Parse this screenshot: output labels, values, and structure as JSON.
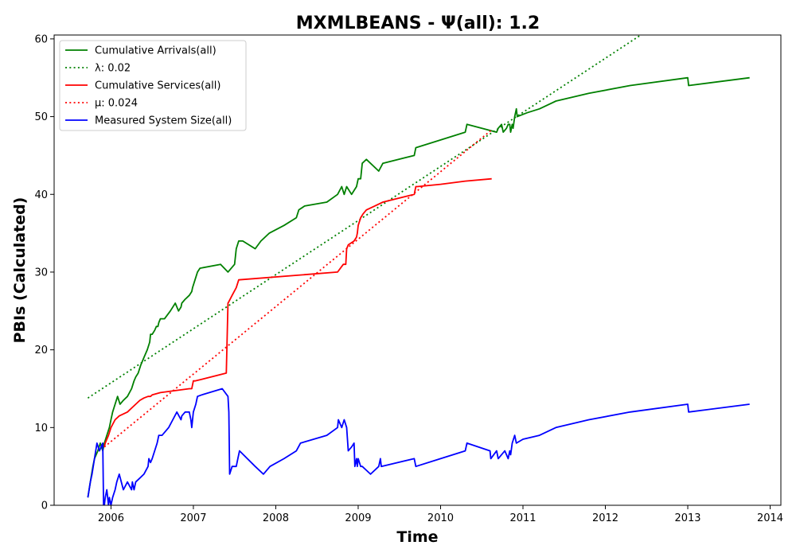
{
  "chart_data": {
    "type": "line",
    "title": "MXMLBEANS -  Ψ(all): 1.2",
    "xlabel": "Time",
    "ylabel": "PBIs (Calculated)",
    "xlim": [
      2005.31,
      2014.13
    ],
    "ylim": [
      0,
      60.5
    ],
    "x_ticks": [
      2006,
      2007,
      2008,
      2009,
      2010,
      2011,
      2012,
      2013,
      2014
    ],
    "y_ticks": [
      0,
      10,
      20,
      30,
      40,
      50,
      60
    ],
    "grid": false,
    "legend_position": "top-left",
    "series": [
      {
        "name": "Cumulative Arrivals(all)",
        "style": "solid",
        "color": "#008000",
        "x": [
          2005.72,
          2005.75,
          2005.78,
          2005.8,
          2005.84,
          2005.87,
          2005.9,
          2005.92,
          2005.95,
          2005.98,
          2006.0,
          2006.02,
          2006.05,
          2006.08,
          2006.11,
          2006.15,
          2006.2,
          2006.25,
          2006.28,
          2006.3,
          2006.33,
          2006.36,
          2006.4,
          2006.44,
          2006.47,
          2006.48,
          2006.5,
          2006.53,
          2006.55,
          2006.57,
          2006.58,
          2006.6,
          2006.65,
          2006.72,
          2006.78,
          2006.82,
          2006.85,
          2006.86,
          2006.9,
          2006.95,
          2006.98,
          2006.99,
          2007.02,
          2007.05,
          2007.08,
          2007.33,
          2007.42,
          2007.5,
          2007.52,
          2007.55,
          2007.6,
          2007.75,
          2007.82,
          2007.92,
          2008.1,
          2008.25,
          2008.28,
          2008.35,
          2008.62,
          2008.75,
          2008.8,
          2008.83,
          2008.86,
          2008.92,
          2008.95,
          2008.98,
          2009.0,
          2009.03,
          2009.05,
          2009.1,
          2009.25,
          2009.3,
          2009.68,
          2009.7,
          2010.0,
          2010.3,
          2010.32,
          2010.68,
          2010.7,
          2010.74,
          2010.76,
          2010.8,
          2010.82,
          2010.84,
          2010.85,
          2010.87,
          2010.88,
          2010.9,
          2010.92,
          2010.93,
          2011.05,
          2011.2,
          2011.4,
          2011.8,
          2012.3,
          2013.0,
          2013.01,
          2013.75
        ],
        "y": [
          1,
          3,
          5,
          6,
          7,
          8,
          7,
          8,
          9,
          10,
          11,
          12,
          13,
          14,
          13,
          13.5,
          14,
          15,
          16,
          16.5,
          17,
          18,
          19,
          20,
          21,
          22,
          22,
          22.5,
          23,
          23,
          23.5,
          24,
          24,
          25,
          26,
          25,
          25.5,
          26,
          26.5,
          27,
          27.5,
          28,
          29,
          30,
          30.5,
          31,
          30,
          31,
          33,
          34,
          34,
          33,
          34,
          35,
          36,
          37,
          38,
          38.5,
          39,
          40,
          41,
          40,
          41,
          40,
          40.5,
          41,
          42,
          42,
          44,
          44.5,
          43,
          44,
          45,
          46,
          47,
          48,
          49,
          48,
          48.5,
          49,
          48,
          48.5,
          49,
          49,
          48,
          49,
          48.5,
          50,
          51,
          50,
          50.5,
          51,
          52,
          53,
          54,
          55,
          54,
          55
        ]
      },
      {
        "name": "λ: 0.02",
        "style": "dotted",
        "color": "#008000",
        "x": [
          2005.72,
          2012.43
        ],
        "y": [
          13.8,
          60.5
        ]
      },
      {
        "name": "Cumulative Services(all)",
        "style": "solid",
        "color": "#ff0000",
        "x": [
          2005.92,
          2005.93,
          2005.95,
          2005.97,
          2006.0,
          2006.05,
          2006.1,
          2006.2,
          2006.25,
          2006.3,
          2006.35,
          2006.4,
          2006.45,
          2006.48,
          2006.5,
          2006.6,
          2006.95,
          2006.98,
          2007.0,
          2007.02,
          2007.1,
          2007.4,
          2007.42,
          2007.43,
          2007.47,
          2007.52,
          2007.55,
          2008.75,
          2008.82,
          2008.85,
          2008.86,
          2008.88,
          2008.95,
          2008.98,
          2008.99,
          2009.0,
          2009.03,
          2009.06,
          2009.1,
          2009.2,
          2009.3,
          2009.68,
          2009.7,
          2009.72,
          2010.0,
          2010.3,
          2010.62
        ],
        "y": [
          7.5,
          8,
          8.5,
          9,
          10,
          11,
          11.5,
          12,
          12.5,
          13,
          13.5,
          13.8,
          14,
          14,
          14.2,
          14.5,
          15,
          15,
          16,
          16,
          16.2,
          17,
          26,
          26.2,
          27,
          28,
          29,
          30,
          31,
          31,
          33,
          33.5,
          34,
          34.5,
          35,
          36,
          37,
          37.5,
          38,
          38.5,
          39,
          40,
          41,
          41,
          41.3,
          41.7,
          42
        ]
      },
      {
        "name": "μ: 0.024",
        "style": "dotted",
        "color": "#ff0000",
        "x": [
          2005.92,
          2010.62
        ],
        "y": [
          7.5,
          48.3
        ]
      },
      {
        "name": "Measured System Size(all)",
        "style": "solid",
        "color": "#0000ff",
        "x": [
          2005.72,
          2005.75,
          2005.77,
          2005.8,
          2005.83,
          2005.86,
          2005.88,
          2005.9,
          2005.91,
          2005.92,
          2005.93,
          2005.95,
          2005.97,
          2005.98,
          2006.0,
          2006.02,
          2006.05,
          2006.07,
          2006.1,
          2006.15,
          2006.2,
          2006.25,
          2006.26,
          2006.28,
          2006.3,
          2006.35,
          2006.4,
          2006.45,
          2006.46,
          2006.48,
          2006.5,
          2006.53,
          2006.56,
          2006.58,
          2006.62,
          2006.7,
          2006.75,
          2006.8,
          2006.85,
          2006.86,
          2006.9,
          2006.95,
          2006.97,
          2006.98,
          2006.99,
          2007.0,
          2007.03,
          2007.05,
          2007.1,
          2007.35,
          2007.42,
          2007.43,
          2007.44,
          2007.47,
          2007.52,
          2007.54,
          2007.56,
          2007.75,
          2007.85,
          2007.93,
          2008.1,
          2008.25,
          2008.3,
          2008.62,
          2008.75,
          2008.76,
          2008.8,
          2008.83,
          2008.86,
          2008.88,
          2008.92,
          2008.95,
          2008.96,
          2008.98,
          2008.99,
          2009.0,
          2009.03,
          2009.05,
          2009.1,
          2009.15,
          2009.25,
          2009.27,
          2009.28,
          2009.68,
          2009.7,
          2010.0,
          2010.3,
          2010.32,
          2010.6,
          2010.61,
          2010.68,
          2010.7,
          2010.78,
          2010.82,
          2010.84,
          2010.85,
          2010.87,
          2010.9,
          2010.92,
          2011.0,
          2011.2,
          2011.4,
          2011.8,
          2012.3,
          2013.0,
          2013.01,
          2013.75
        ],
        "y": [
          1,
          3,
          4,
          6,
          8,
          7,
          7.5,
          8,
          0,
          0,
          1,
          2,
          0,
          1,
          0,
          1,
          2,
          3,
          4,
          2,
          3,
          2,
          3,
          2,
          3,
          3.5,
          4,
          5,
          6,
          5.5,
          6,
          7,
          8,
          9,
          9,
          10,
          11,
          12,
          11,
          11.5,
          12,
          12,
          11,
          10,
          11,
          12,
          13,
          14,
          14.2,
          15,
          14,
          12,
          4,
          5,
          5,
          6,
          7,
          5,
          4,
          5,
          6,
          7,
          8,
          9,
          10,
          11,
          10,
          11,
          10,
          7,
          7.5,
          8,
          5,
          6,
          5,
          6,
          5,
          5,
          4.5,
          4,
          5,
          6,
          5,
          6,
          5,
          6,
          7,
          8,
          7,
          6,
          7,
          6,
          7,
          6,
          7,
          6.5,
          8,
          9,
          8,
          8.5,
          9,
          10,
          11,
          12,
          13,
          12,
          13
        ]
      }
    ]
  }
}
